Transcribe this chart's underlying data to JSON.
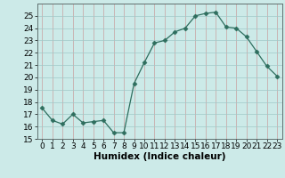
{
  "x": [
    0,
    1,
    2,
    3,
    4,
    5,
    6,
    7,
    8,
    9,
    10,
    11,
    12,
    13,
    14,
    15,
    16,
    17,
    18,
    19,
    20,
    21,
    22,
    23
  ],
  "y": [
    17.5,
    16.5,
    16.2,
    17.0,
    16.3,
    16.4,
    16.5,
    15.5,
    15.5,
    19.5,
    21.2,
    22.8,
    23.0,
    23.7,
    24.0,
    25.0,
    25.2,
    25.3,
    24.1,
    24.0,
    23.3,
    22.1,
    20.9,
    20.1
  ],
  "line_color": "#2e6e5e",
  "marker": "D",
  "marker_size": 2.5,
  "bg_color": "#cceae8",
  "grid_color": "#b0d0ce",
  "xlabel": "Humidex (Indice chaleur)",
  "ylim": [
    15,
    26
  ],
  "xlim": [
    -0.5,
    23.5
  ],
  "yticks": [
    15,
    16,
    17,
    18,
    19,
    20,
    21,
    22,
    23,
    24,
    25
  ],
  "xticks": [
    0,
    1,
    2,
    3,
    4,
    5,
    6,
    7,
    8,
    9,
    10,
    11,
    12,
    13,
    14,
    15,
    16,
    17,
    18,
    19,
    20,
    21,
    22,
    23
  ],
  "tick_fontsize": 6.5,
  "xlabel_fontsize": 7.5
}
